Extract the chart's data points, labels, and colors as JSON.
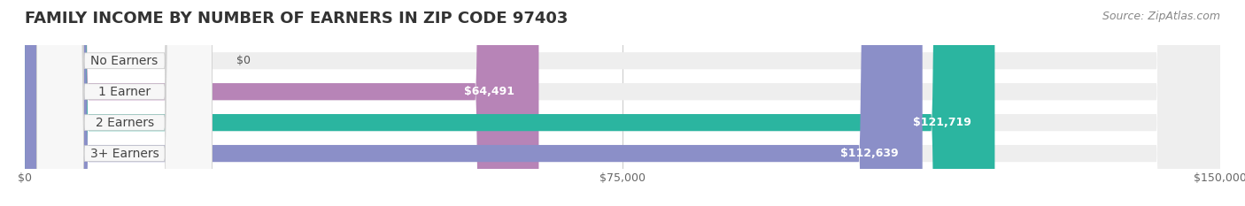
{
  "title": "FAMILY INCOME BY NUMBER OF EARNERS IN ZIP CODE 97403",
  "source": "Source: ZipAtlas.com",
  "categories": [
    "No Earners",
    "1 Earner",
    "2 Earners",
    "3+ Earners"
  ],
  "values": [
    0,
    64491,
    121719,
    112639
  ],
  "bar_colors": [
    "#8ab4d8",
    "#b784b7",
    "#2bb5a0",
    "#8b8fc8"
  ],
  "label_bg_color": "#f0f0f0",
  "background_color": "#f5f5f5",
  "bar_bg_color": "#e8e8e8",
  "xlim": [
    0,
    150000
  ],
  "xticks": [
    0,
    75000,
    150000
  ],
  "xticklabels": [
    "$0",
    "$75,000",
    "$150,000"
  ],
  "title_fontsize": 13,
  "bar_label_fontsize": 10,
  "value_label_fontsize": 9,
  "source_fontsize": 9,
  "bar_height": 0.55,
  "bar_gap": 0.1
}
